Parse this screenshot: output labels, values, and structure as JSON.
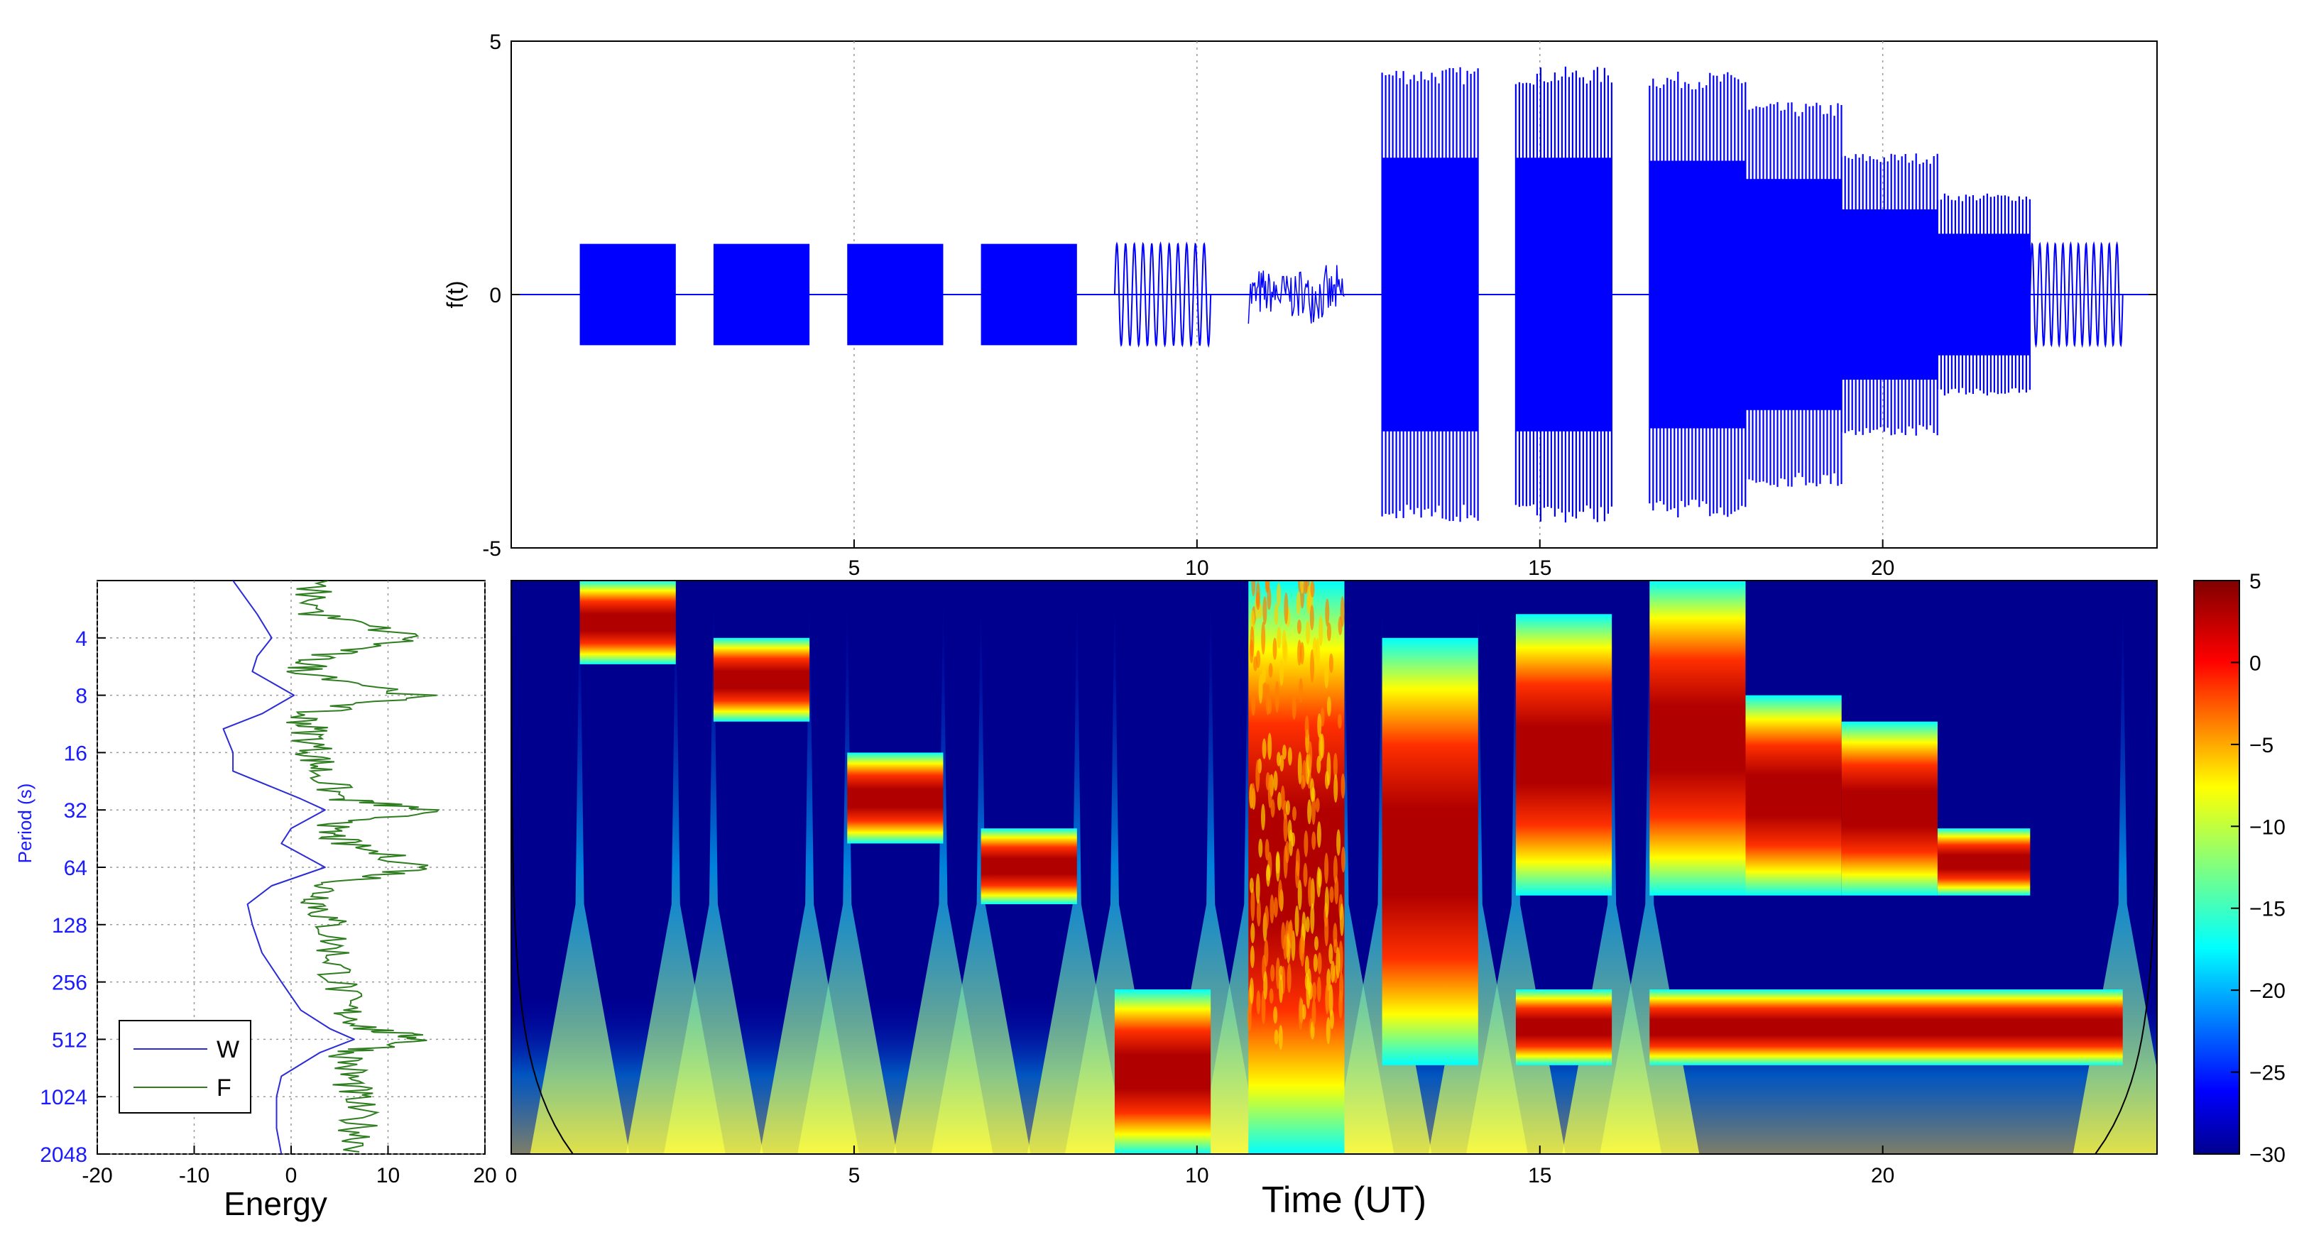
{
  "chart_data": [
    {
      "type": "line",
      "panel": "signal",
      "ylabel": "f(t)",
      "xlim": [
        0,
        24
      ],
      "ylim": [
        -5,
        5
      ],
      "xticks": [
        5,
        10,
        15,
        20
      ],
      "yticks": [
        5,
        0,
        -5
      ],
      "grid": "x-dotted",
      "color": "#0000ff",
      "segments": [
        {
          "t0": 1.0,
          "t1": 2.4,
          "amp": 1.0,
          "kind": "dense"
        },
        {
          "t0": 2.95,
          "t1": 4.35,
          "amp": 1.0,
          "kind": "dense"
        },
        {
          "t0": 4.9,
          "t1": 6.3,
          "amp": 1.0,
          "kind": "dense"
        },
        {
          "t0": 6.85,
          "t1": 8.25,
          "amp": 1.0,
          "kind": "dense"
        },
        {
          "t0": 8.8,
          "t1": 10.2,
          "amp": 1.0,
          "kind": "sine",
          "cycles": 11
        },
        {
          "t0": 10.75,
          "t1": 12.15,
          "amp": 0.6,
          "kind": "noise"
        },
        {
          "t0": 12.7,
          "t1": 14.1,
          "amp": 4.5,
          "kind": "mixed"
        },
        {
          "t0": 14.65,
          "t1": 16.05,
          "amp": 4.5,
          "kind": "mixed"
        },
        {
          "t0": 16.6,
          "t1": 18.0,
          "amp": 4.4,
          "kind": "mixed"
        },
        {
          "t0": 18.0,
          "t1": 19.4,
          "amp": 3.8,
          "kind": "mixed"
        },
        {
          "t0": 19.4,
          "t1": 20.8,
          "amp": 2.8,
          "kind": "mixed"
        },
        {
          "t0": 20.8,
          "t1": 22.15,
          "amp": 2.0,
          "kind": "mixed"
        },
        {
          "t0": 22.15,
          "t1": 23.5,
          "amp": 1.0,
          "kind": "sine",
          "cycles": 12
        }
      ]
    },
    {
      "type": "line",
      "panel": "energy",
      "xlabel": "Energy",
      "ylabel": "Period (s)",
      "xlim": [
        -20,
        20
      ],
      "xticks": [
        -20,
        -10,
        0,
        10,
        20
      ],
      "yticks": [
        "4",
        "8",
        "16",
        "32",
        "64",
        "128",
        "256",
        "512",
        "1024",
        "2048"
      ],
      "yscale": "log2",
      "grid": "dotted",
      "legend": {
        "placement": "bottom-left",
        "entries": [
          "W",
          "F"
        ]
      },
      "series": [
        {
          "name": "W",
          "color": "#2b2bd8",
          "period": [
            1.5,
            2,
            3,
            4,
            5,
            6,
            8,
            10,
            12,
            16,
            20,
            28,
            32,
            40,
            48,
            64,
            80,
            100,
            128,
            180,
            256,
            360,
            450,
            512,
            600,
            800,
            1024,
            1500,
            2048
          ],
          "value": [
            -7.5,
            -6,
            -3.5,
            -2,
            -3.5,
            -4,
            0.3,
            -3,
            -7,
            -6,
            -6,
            1,
            3.5,
            0,
            -1,
            3.5,
            -2,
            -4.5,
            -4,
            -3,
            -1,
            1,
            4,
            6.5,
            3,
            -1,
            -1.5,
            -1.5,
            -1
          ]
        },
        {
          "name": "F",
          "color": "#2e7d1f",
          "period": [
            1.5,
            2,
            3,
            4,
            5,
            6,
            8,
            10,
            12,
            16,
            20,
            28,
            32,
            40,
            48,
            64,
            80,
            100,
            128,
            180,
            256,
            360,
            450,
            512,
            600,
            800,
            1024,
            1500,
            2048
          ],
          "value": [
            1,
            2,
            2.5,
            13,
            2.5,
            1.5,
            13,
            1,
            2,
            2.5,
            3,
            5,
            14,
            3,
            5.5,
            14,
            3.5,
            3,
            4,
            4.5,
            5,
            5.5,
            8,
            14,
            6,
            6,
            6.5,
            7,
            7.5
          ]
        }
      ]
    },
    {
      "type": "heatmap",
      "panel": "wavelet",
      "xlabel": "Time (UT)",
      "xlim": [
        0,
        24
      ],
      "xticks": [
        0,
        5,
        10,
        15,
        20
      ],
      "yscale": "log2",
      "period_range": [
        2,
        2048
      ],
      "colorbar": {
        "min": -30,
        "max": 5,
        "ticks": [
          5,
          0,
          -5,
          -10,
          -15,
          -20,
          -25,
          -30
        ],
        "colormap": "jet"
      },
      "bands": [
        {
          "t0": 1.0,
          "t1": 2.4,
          "pmin": 2,
          "pmax": 5.5
        },
        {
          "t0": 2.95,
          "t1": 4.35,
          "pmin": 4,
          "pmax": 11
        },
        {
          "t0": 4.9,
          "t1": 6.3,
          "pmin": 16,
          "pmax": 48
        },
        {
          "t0": 6.85,
          "t1": 8.25,
          "pmin": 40,
          "pmax": 100
        },
        {
          "t0": 8.8,
          "t1": 10.2,
          "pmin": 280,
          "pmax": 2048
        },
        {
          "t0": 10.75,
          "t1": 12.15,
          "pmin": 2,
          "pmax": 2048
        },
        {
          "t0": 12.7,
          "t1": 14.1,
          "pmin": 4,
          "pmax": 700
        },
        {
          "t0": 14.65,
          "t1": 16.05,
          "pmin": 3,
          "pmax": 90
        },
        {
          "t0": 14.65,
          "t1": 16.05,
          "pmin": 280,
          "pmax": 700
        },
        {
          "t0": 16.6,
          "t1": 18.0,
          "pmin": 2,
          "pmax": 90
        },
        {
          "t0": 18.0,
          "t1": 19.4,
          "pmin": 8,
          "pmax": 90
        },
        {
          "t0": 19.4,
          "t1": 20.8,
          "pmin": 11,
          "pmax": 90
        },
        {
          "t0": 20.8,
          "t1": 22.15,
          "pmin": 40,
          "pmax": 90
        },
        {
          "t0": 16.6,
          "t1": 23.5,
          "pmin": 280,
          "pmax": 700
        }
      ]
    }
  ]
}
